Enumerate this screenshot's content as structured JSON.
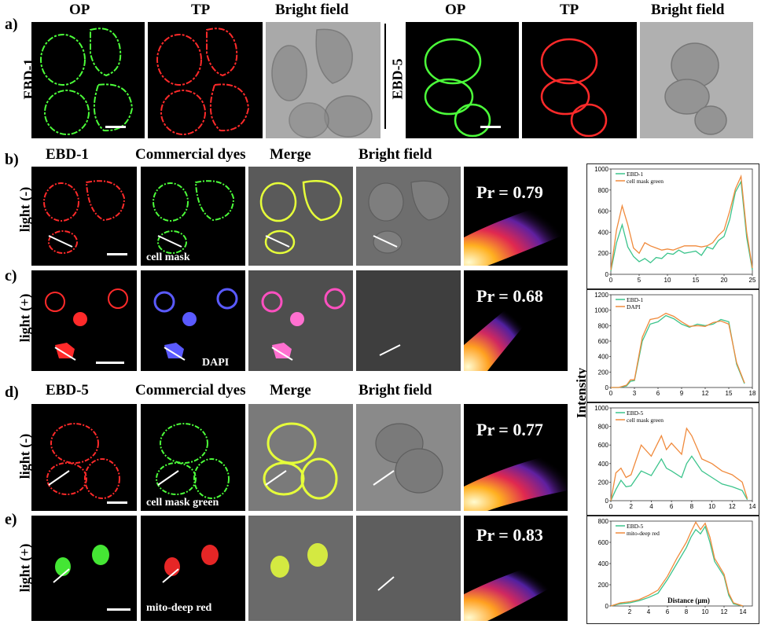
{
  "panel_a": {
    "letter": "a)",
    "left": {
      "row_label": "EBD-1",
      "headers": [
        "OP",
        "TP",
        "Bright field"
      ]
    },
    "right": {
      "row_label": "EBD-5",
      "headers": [
        "OP",
        "TP",
        "Bright field"
      ]
    }
  },
  "panel_b": {
    "letter": "b)",
    "row_label": "light (-)",
    "headers": [
      "EBD-1",
      "Commercial dyes",
      "Merge",
      "Bright field"
    ],
    "stain_label": "cell mask",
    "pr": "Pr = 0.79"
  },
  "panel_c": {
    "letter": "c)",
    "row_label": "light (+)",
    "stain_label": "DAPI",
    "pr": "Pr = 0.68"
  },
  "panel_d": {
    "letter": "d)",
    "row_label": "light (-)",
    "headers": [
      "EBD-5",
      "Commercial dyes",
      "Merge",
      "Bright field"
    ],
    "stain_label": "cell mask green",
    "pr": "Pr = 0.77"
  },
  "panel_e": {
    "letter": "e)",
    "row_label": "light (+)",
    "stain_label": "mito-deep red",
    "pr": "Pr = 0.83"
  },
  "colors": {
    "green_series": "#3cc48c",
    "orange_series": "#f08a3c",
    "red_cell": "#ff2a2a",
    "green_cell": "#4cff3a",
    "dapi": "#5a5aff"
  },
  "shared_ylabel": "Intensity",
  "chart_data": [
    {
      "type": "line",
      "xlim": [
        0,
        25
      ],
      "ylim": [
        0,
        1000
      ],
      "xticks": [
        "0",
        "5",
        "10",
        "15",
        "20",
        "25"
      ],
      "yticks": [
        "0",
        "200",
        "400",
        "600",
        "800",
        "1000"
      ],
      "legend": "top-left",
      "series": [
        {
          "name": "EBD-1",
          "x": [
            0,
            1,
            2,
            3,
            4,
            5,
            6,
            7,
            8,
            9,
            10,
            11,
            12,
            13,
            14,
            15,
            16,
            17,
            18,
            19,
            20,
            21,
            22,
            23,
            24,
            25
          ],
          "values": [
            30,
            300,
            470,
            260,
            170,
            120,
            150,
            110,
            160,
            150,
            200,
            190,
            230,
            200,
            210,
            220,
            180,
            260,
            240,
            320,
            360,
            520,
            780,
            880,
            350,
            40
          ]
        },
        {
          "name": "cell mask green",
          "x": [
            0,
            1,
            2,
            3,
            4,
            5,
            6,
            7,
            8,
            9,
            10,
            11,
            12,
            13,
            14,
            15,
            16,
            17,
            18,
            19,
            20,
            21,
            22,
            23,
            24,
            25
          ],
          "values": [
            40,
            420,
            650,
            470,
            250,
            200,
            300,
            270,
            250,
            230,
            240,
            230,
            250,
            270,
            270,
            270,
            260,
            270,
            300,
            370,
            420,
            600,
            810,
            930,
            400,
            60
          ]
        }
      ]
    },
    {
      "type": "line",
      "xlim": [
        0,
        18
      ],
      "ylim": [
        0,
        1200
      ],
      "xticks": [
        "0",
        "3",
        "6",
        "9",
        "12",
        "15",
        "18"
      ],
      "yticks": [
        "0",
        "200",
        "400",
        "600",
        "800",
        "1000",
        "1200"
      ],
      "legend": "top-left",
      "series": [
        {
          "name": "EBD-1",
          "x": [
            0,
            1,
            2,
            2.5,
            3,
            4,
            5,
            6,
            7,
            8,
            9,
            10,
            11,
            12,
            13,
            14,
            15,
            16,
            17
          ],
          "values": [
            0,
            0,
            20,
            80,
            90,
            600,
            820,
            850,
            930,
            890,
            820,
            780,
            820,
            800,
            820,
            880,
            850,
            300,
            50
          ]
        },
        {
          "name": "DAPI",
          "x": [
            0,
            1,
            2,
            2.5,
            3,
            4,
            5,
            6,
            7,
            8,
            9,
            10,
            11,
            12,
            13,
            14,
            15,
            16,
            17
          ],
          "values": [
            0,
            0,
            30,
            100,
            100,
            650,
            880,
            900,
            960,
            920,
            850,
            790,
            800,
            790,
            840,
            860,
            820,
            320,
            60
          ]
        }
      ]
    },
    {
      "type": "line",
      "xlim": [
        0,
        14
      ],
      "ylim": [
        0,
        1000
      ],
      "xticks": [
        "0",
        "2",
        "4",
        "6",
        "8",
        "10",
        "12",
        "14"
      ],
      "yticks": [
        "0",
        "200",
        "400",
        "600",
        "800",
        "1000"
      ],
      "legend": "top-left",
      "series": [
        {
          "name": "EBD-5",
          "x": [
            0,
            0.5,
            1,
            1.5,
            2,
            3,
            4,
            5,
            5.5,
            6,
            7,
            7.5,
            8,
            9,
            10,
            11,
            12,
            13,
            13.5
          ],
          "values": [
            0,
            120,
            220,
            150,
            160,
            320,
            270,
            450,
            350,
            320,
            250,
            400,
            480,
            320,
            250,
            180,
            150,
            110,
            10
          ]
        },
        {
          "name": "cell mask green",
          "x": [
            0,
            0.5,
            1,
            1.5,
            2,
            3,
            4,
            5,
            5.5,
            6,
            7,
            7.5,
            8,
            9,
            10,
            11,
            12,
            13,
            13.5
          ],
          "values": [
            0,
            300,
            350,
            250,
            280,
            600,
            480,
            700,
            550,
            620,
            500,
            780,
            700,
            450,
            400,
            320,
            280,
            200,
            20
          ]
        }
      ]
    },
    {
      "type": "line",
      "xlim": [
        0,
        15
      ],
      "ylim": [
        0,
        800
      ],
      "xlabel": "Distance (μm)",
      "xticks": [
        "2",
        "4",
        "6",
        "8",
        "10",
        "12",
        "14"
      ],
      "yticks": [
        "0",
        "200",
        "400",
        "600",
        "800"
      ],
      "legend": "top-left",
      "series": [
        {
          "name": "EBD-5",
          "x": [
            0,
            1,
            2,
            3,
            4,
            5,
            6,
            7,
            8,
            8.5,
            9,
            9.5,
            10,
            10.5,
            11,
            12,
            12.5,
            13,
            14
          ],
          "values": [
            0,
            20,
            30,
            50,
            80,
            120,
            250,
            400,
            550,
            650,
            720,
            680,
            750,
            600,
            420,
            280,
            100,
            20,
            0
          ]
        },
        {
          "name": "mito-deep red",
          "x": [
            0,
            1,
            2,
            3,
            4,
            5,
            6,
            7,
            8,
            8.5,
            9,
            9.5,
            10,
            10.5,
            11,
            12,
            12.5,
            13,
            14
          ],
          "values": [
            0,
            30,
            40,
            60,
            100,
            150,
            280,
            450,
            600,
            700,
            790,
            720,
            780,
            650,
            450,
            300,
            120,
            30,
            0
          ]
        }
      ]
    }
  ]
}
